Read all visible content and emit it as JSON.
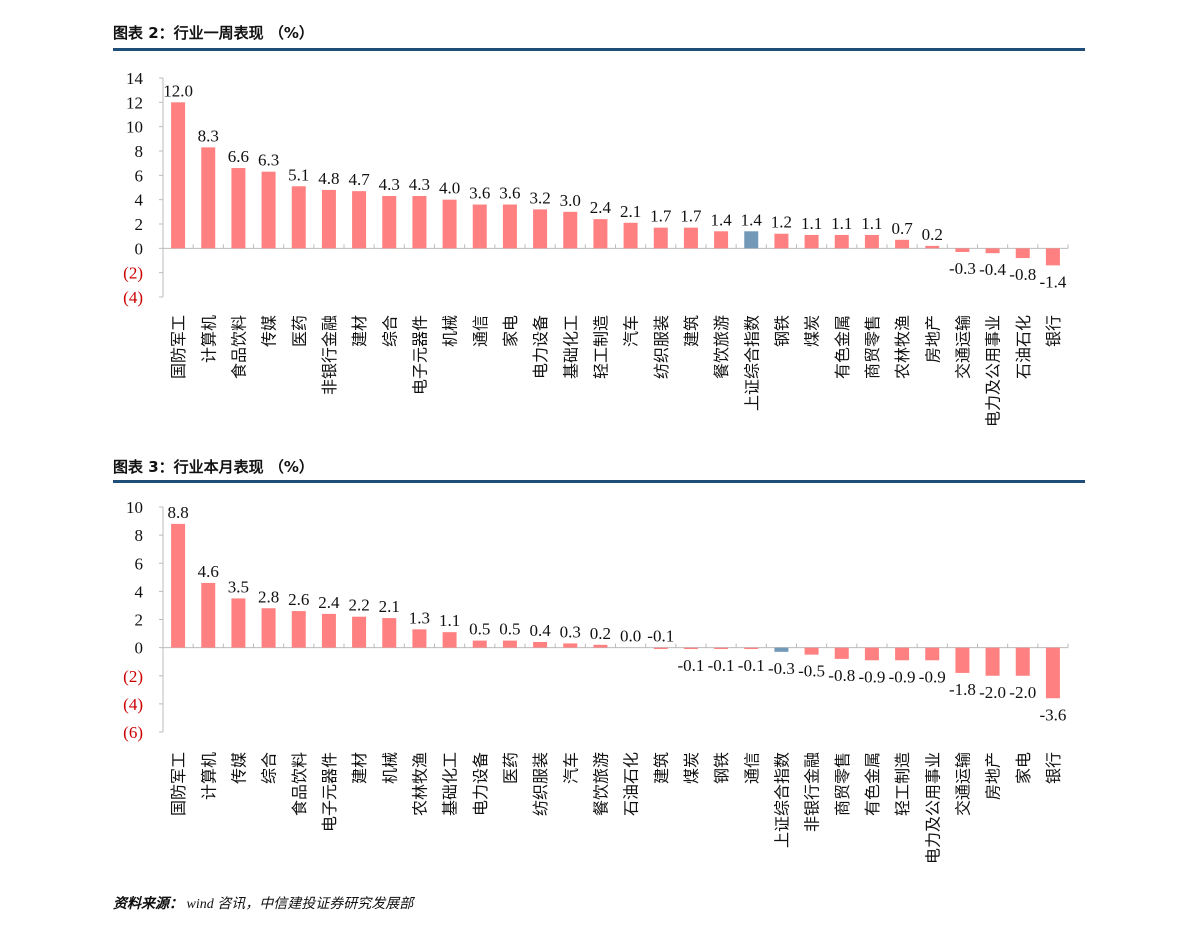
{
  "source": {
    "label": "资料来源：",
    "text": "wind 咨讯，中信建投证券研究发展部"
  },
  "colors": {
    "bar": "#ff8080",
    "index_bar": "#7399b8",
    "rule": "#1f4e79",
    "negative_tick": "#cc0000"
  },
  "chart_data": [
    {
      "type": "bar",
      "title": "图表 2：行业一周表现 （%）",
      "ylim": [
        -4,
        14
      ],
      "yticks": [
        14,
        12,
        10,
        8,
        6,
        4,
        2,
        0,
        -2,
        -4
      ],
      "ytick_labels": [
        "14",
        "12",
        "10",
        "8",
        "6",
        "4",
        "2",
        "0",
        "(2)",
        "(4)"
      ],
      "highlight": "上证综合指数",
      "categories": [
        "国防军工",
        "计算机",
        "食品饮料",
        "传媒",
        "医药",
        "非银行金融",
        "建材",
        "综合",
        "电子元器件",
        "机械",
        "通信",
        "家电",
        "电力设备",
        "基础化工",
        "轻工制造",
        "汽车",
        "纺织服装",
        "建筑",
        "餐饮旅游",
        "上证综合指数",
        "钢铁",
        "煤炭",
        "有色金属",
        "商贸零售",
        "农林牧渔",
        "房地产",
        "交通运输",
        "电力及公用事业",
        "石油石化",
        "银行"
      ],
      "values": [
        12.0,
        8.3,
        6.6,
        6.3,
        5.1,
        4.8,
        4.7,
        4.3,
        4.3,
        4.0,
        3.6,
        3.6,
        3.2,
        3.0,
        2.4,
        2.1,
        1.7,
        1.7,
        1.4,
        1.4,
        1.2,
        1.1,
        1.1,
        1.1,
        0.7,
        0.2,
        -0.3,
        -0.4,
        -0.8,
        -1.4
      ],
      "labels": [
        "12.0",
        "8.3",
        "6.6",
        "6.3",
        "5.1",
        "4.8",
        "4.7",
        "4.3",
        "4.3",
        "4.0",
        "3.6",
        "3.6",
        "3.2",
        "3.0",
        "2.4",
        "2.1",
        "1.7",
        "1.7",
        "1.4",
        "1.4",
        "1.2",
        "1.1",
        "1.1",
        "1.1",
        "0.7",
        "0.2",
        "-0.3",
        "-0.4",
        "-0.8",
        "-1.4"
      ]
    },
    {
      "type": "bar",
      "title": "图表 3：行业本月表现 （%）",
      "ylim": [
        -6,
        10
      ],
      "yticks": [
        10,
        8,
        6,
        4,
        2,
        0,
        -2,
        -4,
        -6
      ],
      "ytick_labels": [
        "10",
        "8",
        "6",
        "4",
        "2",
        "0",
        "(2)",
        "(4)",
        "(6)"
      ],
      "highlight": "上证综合指数",
      "categories": [
        "国防军工",
        "计算机",
        "传媒",
        "综合",
        "食品饮料",
        "电子元器件",
        "建材",
        "机械",
        "农林牧渔",
        "基础化工",
        "电力设备",
        "医药",
        "纺织服装",
        "汽车",
        "餐饮旅游",
        "石油石化",
        "建筑",
        "煤炭",
        "钢铁",
        "通信",
        "上证综合指数",
        "非银行金融",
        "商贸零售",
        "有色金属",
        "轻工制造",
        "电力及公用事业",
        "交通运输",
        "房地产",
        "家电",
        "银行"
      ],
      "values": [
        8.8,
        4.6,
        3.5,
        2.8,
        2.6,
        2.4,
        2.2,
        2.1,
        1.3,
        1.1,
        0.5,
        0.5,
        0.4,
        0.3,
        0.2,
        0.0,
        -0.1,
        -0.1,
        -0.1,
        -0.1,
        -0.3,
        -0.5,
        -0.8,
        -0.9,
        -0.9,
        -0.9,
        -1.8,
        -2.0,
        -2.0,
        -3.6
      ],
      "labels": [
        "8.8",
        "4.6",
        "3.5",
        "2.8",
        "2.6",
        "2.4",
        "2.2",
        "2.1",
        "1.3",
        "1.1",
        "0.5",
        "0.5",
        "0.4",
        "0.3",
        "0.2",
        "0.0",
        "-0.1",
        "-0.1",
        "-0.1",
        "-0.1",
        "-0.3",
        "-0.5",
        "-0.8",
        "-0.9",
        "-0.9",
        "-0.9",
        "-1.8",
        "-2.0",
        "-2.0",
        "-3.6"
      ]
    }
  ]
}
